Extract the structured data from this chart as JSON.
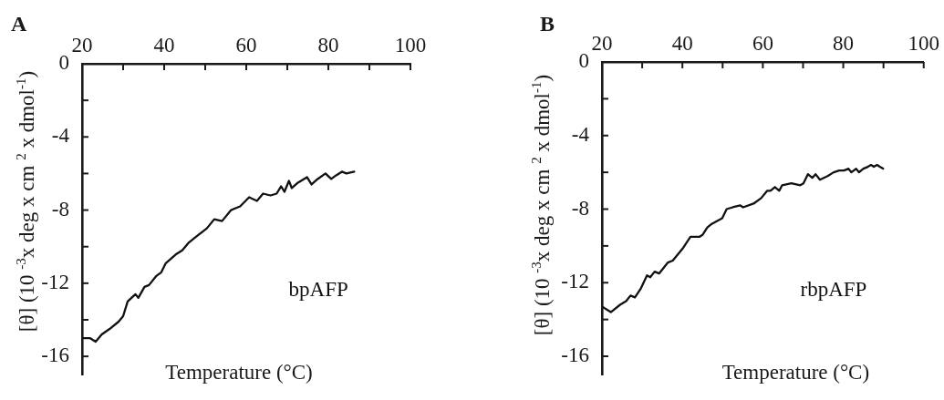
{
  "chart_data": [
    {
      "type": "line",
      "title": "A",
      "xlabel": "Temperature (°C)",
      "ylabel": "[θ] (10 $^{-3}$x deg x cm $^{2}$ x dmol$^{-1}$)",
      "xlim": [
        20,
        100
      ],
      "ylim": [
        -17,
        0
      ],
      "xticks": [
        20,
        {
          "value": 30,
          "label": null
        },
        40,
        {
          "value": 50,
          "label": null
        },
        60,
        {
          "value": 70,
          "label": null
        },
        80,
        {
          "value": 90,
          "label": null
        },
        100
      ],
      "yticks": [
        0,
        {
          "value": -2,
          "label": null
        },
        -4,
        {
          "value": -6,
          "label": null
        },
        -8,
        {
          "value": -10,
          "label": null
        },
        -12,
        {
          "value": -14,
          "label": null
        },
        -16
      ],
      "series": [
        {
          "name": "bpAFP",
          "color": "#111111",
          "x": [
            20.4,
            21.9,
            23.3,
            24.8,
            26.7,
            28.9,
            30.0,
            31.1,
            33.0,
            33.7,
            35.2,
            36.3,
            38.1,
            39.3,
            40.4,
            43.0,
            44.4,
            45.9,
            48.1,
            50.4,
            52.2,
            54.1,
            56.3,
            58.5,
            60.7,
            62.6,
            64.1,
            65.9,
            67.4,
            68.5,
            69.3,
            70.4,
            71.1,
            72.6,
            74.8,
            75.9,
            77.4,
            79.3,
            80.7,
            81.9,
            83.3,
            84.4,
            86.3
          ],
          "values": [
            -15.0,
            -15.0,
            -15.2,
            -14.8,
            -14.5,
            -14.1,
            -13.8,
            -13.0,
            -12.6,
            -12.8,
            -12.2,
            -12.1,
            -11.6,
            -11.4,
            -10.9,
            -10.4,
            -10.2,
            -9.8,
            -9.4,
            -9.0,
            -8.5,
            -8.6,
            -8.0,
            -7.8,
            -7.3,
            -7.5,
            -7.1,
            -7.2,
            -7.1,
            -6.7,
            -7.0,
            -6.4,
            -6.8,
            -6.5,
            -6.2,
            -6.6,
            -6.3,
            -6.0,
            -6.3,
            -6.1,
            -5.9,
            -6.0,
            -5.9
          ]
        }
      ]
    },
    {
      "type": "line",
      "title": "B",
      "xlabel": "Temperature (°C)",
      "ylabel": "[θ] (10 $^{-3}$x deg x cm $^{2}$ x dmol$^{-1}$)",
      "xlim": [
        20,
        100
      ],
      "ylim": [
        -17,
        0
      ],
      "xticks": [
        20,
        {
          "value": 30,
          "label": null
        },
        40,
        {
          "value": 50,
          "label": null
        },
        60,
        {
          "value": 70,
          "label": null
        },
        80,
        {
          "value": 90,
          "label": null
        },
        100
      ],
      "yticks": [
        0,
        {
          "value": -2,
          "label": null
        },
        -4,
        {
          "value": -6,
          "label": null
        },
        -8,
        {
          "value": -10,
          "label": null
        },
        -12,
        {
          "value": -14,
          "label": null
        },
        -16
      ],
      "series": [
        {
          "name": "rbpAFP",
          "color": "#111111",
          "x": [
            20.0,
            22.2,
            24.5,
            26.0,
            27.1,
            28.2,
            29.7,
            31.2,
            32.0,
            33.1,
            34.2,
            36.4,
            37.6,
            40.2,
            42.0,
            44.3,
            45.0,
            46.2,
            47.3,
            49.9,
            51.0,
            52.5,
            54.4,
            55.1,
            57.7,
            59.6,
            61.1,
            61.9,
            63.0,
            64.1,
            64.8,
            67.1,
            69.3,
            70.1,
            71.2,
            72.3,
            73.1,
            74.2,
            76.1,
            77.6,
            79.0,
            80.2,
            81.3,
            82.0,
            83.2,
            83.9,
            85.0,
            86.1,
            86.9,
            87.6,
            88.4,
            89.1,
            89.9
          ],
          "values": [
            -13.3,
            -13.6,
            -13.2,
            -13.0,
            -12.7,
            -12.8,
            -12.3,
            -11.6,
            -11.7,
            -11.4,
            -11.5,
            -10.9,
            -10.8,
            -10.1,
            -9.5,
            -9.5,
            -9.4,
            -9.0,
            -8.8,
            -8.5,
            -8.0,
            -7.9,
            -7.8,
            -7.9,
            -7.7,
            -7.4,
            -7.0,
            -7.0,
            -6.8,
            -7.0,
            -6.7,
            -6.6,
            -6.7,
            -6.6,
            -6.1,
            -6.3,
            -6.1,
            -6.4,
            -6.2,
            -6.0,
            -5.9,
            -5.9,
            -5.8,
            -6.0,
            -5.8,
            -6.0,
            -5.8,
            -5.7,
            -5.6,
            -5.7,
            -5.6,
            -5.7,
            -5.8
          ]
        }
      ]
    }
  ]
}
